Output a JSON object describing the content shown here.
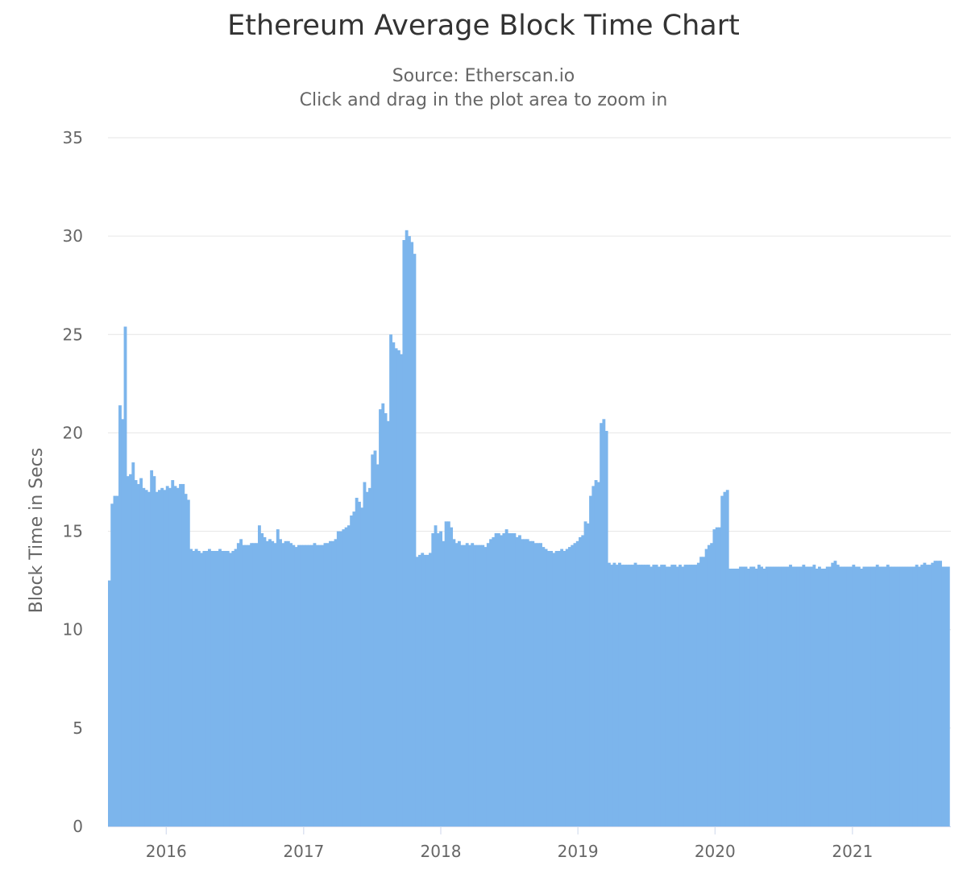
{
  "chart_data": {
    "type": "bar",
    "title": "Ethereum Average Block Time Chart",
    "subtitle": [
      "Source: Etherscan.io",
      "Click and drag in the plot area to zoom in"
    ],
    "xlabel": "",
    "ylabel": "Block Time in Secs",
    "ylim": [
      0,
      35
    ],
    "yticks": [
      0,
      5,
      10,
      15,
      20,
      25,
      30,
      35
    ],
    "xlim": [
      "2015-07-30",
      "2021-09-20"
    ],
    "xticks": [
      "2016",
      "2017",
      "2018",
      "2019",
      "2020",
      "2021"
    ],
    "bar_color": "#7cb5ec",
    "grid": true,
    "x": [
      "2015-07-30",
      "2015-08-06",
      "2015-08-13",
      "2015-08-20",
      "2015-08-27",
      "2015-09-03",
      "2015-09-10",
      "2015-09-17",
      "2015-09-24",
      "2015-10-01",
      "2015-10-08",
      "2015-10-15",
      "2015-10-22",
      "2015-10-29",
      "2015-11-05",
      "2015-11-12",
      "2015-11-19",
      "2015-11-26",
      "2015-12-03",
      "2015-12-10",
      "2015-12-17",
      "2015-12-24",
      "2015-12-31",
      "2016-01-07",
      "2016-01-14",
      "2016-01-21",
      "2016-01-28",
      "2016-02-04",
      "2016-02-11",
      "2016-02-18",
      "2016-02-25",
      "2016-03-03",
      "2016-03-10",
      "2016-03-17",
      "2016-03-24",
      "2016-03-31",
      "2016-04-07",
      "2016-04-14",
      "2016-04-21",
      "2016-04-28",
      "2016-05-05",
      "2016-05-12",
      "2016-05-19",
      "2016-05-26",
      "2016-06-02",
      "2016-06-09",
      "2016-06-16",
      "2016-06-23",
      "2016-06-30",
      "2016-07-07",
      "2016-07-14",
      "2016-07-21",
      "2016-07-28",
      "2016-08-04",
      "2016-08-11",
      "2016-08-18",
      "2016-08-25",
      "2016-09-01",
      "2016-09-08",
      "2016-09-15",
      "2016-09-22",
      "2016-09-29",
      "2016-10-06",
      "2016-10-13",
      "2016-10-20",
      "2016-10-27",
      "2016-11-03",
      "2016-11-10",
      "2016-11-17",
      "2016-11-24",
      "2016-12-01",
      "2016-12-08",
      "2016-12-15",
      "2016-12-22",
      "2016-12-29",
      "2017-01-05",
      "2017-01-12",
      "2017-01-19",
      "2017-01-26",
      "2017-02-02",
      "2017-02-09",
      "2017-02-16",
      "2017-02-23",
      "2017-03-02",
      "2017-03-09",
      "2017-03-16",
      "2017-03-23",
      "2017-03-30",
      "2017-04-06",
      "2017-04-13",
      "2017-04-20",
      "2017-04-27",
      "2017-05-04",
      "2017-05-11",
      "2017-05-18",
      "2017-05-25",
      "2017-06-01",
      "2017-06-08",
      "2017-06-15",
      "2017-06-22",
      "2017-06-29",
      "2017-07-06",
      "2017-07-13",
      "2017-07-20",
      "2017-07-27",
      "2017-08-03",
      "2017-08-10",
      "2017-08-17",
      "2017-08-24",
      "2017-08-31",
      "2017-09-07",
      "2017-09-14",
      "2017-09-21",
      "2017-09-28",
      "2017-10-05",
      "2017-10-12",
      "2017-10-19",
      "2017-10-26",
      "2017-11-02",
      "2017-11-09",
      "2017-11-16",
      "2017-11-23",
      "2017-11-30",
      "2017-12-07",
      "2017-12-14",
      "2017-12-21",
      "2017-12-28",
      "2018-01-04",
      "2018-01-11",
      "2018-01-18",
      "2018-01-25",
      "2018-02-01",
      "2018-02-08",
      "2018-02-15",
      "2018-02-22",
      "2018-03-01",
      "2018-03-08",
      "2018-03-15",
      "2018-03-22",
      "2018-03-29",
      "2018-04-05",
      "2018-04-12",
      "2018-04-19",
      "2018-04-26",
      "2018-05-03",
      "2018-05-10",
      "2018-05-17",
      "2018-05-24",
      "2018-05-31",
      "2018-06-07",
      "2018-06-14",
      "2018-06-21",
      "2018-06-28",
      "2018-07-05",
      "2018-07-12",
      "2018-07-19",
      "2018-07-26",
      "2018-08-02",
      "2018-08-09",
      "2018-08-16",
      "2018-08-23",
      "2018-08-30",
      "2018-09-06",
      "2018-09-13",
      "2018-09-20",
      "2018-09-27",
      "2018-10-04",
      "2018-10-11",
      "2018-10-18",
      "2018-10-25",
      "2018-11-01",
      "2018-11-08",
      "2018-11-15",
      "2018-11-22",
      "2018-11-29",
      "2018-12-06",
      "2018-12-13",
      "2018-12-20",
      "2018-12-27",
      "2019-01-03",
      "2019-01-10",
      "2019-01-17",
      "2019-01-24",
      "2019-01-31",
      "2019-02-07",
      "2019-02-14",
      "2019-02-21",
      "2019-02-28",
      "2019-03-07",
      "2019-03-14",
      "2019-03-21",
      "2019-03-28",
      "2019-04-04",
      "2019-04-11",
      "2019-04-18",
      "2019-04-25",
      "2019-05-02",
      "2019-05-09",
      "2019-05-16",
      "2019-05-23",
      "2019-05-30",
      "2019-06-06",
      "2019-06-13",
      "2019-06-20",
      "2019-06-27",
      "2019-07-04",
      "2019-07-11",
      "2019-07-18",
      "2019-07-25",
      "2019-08-01",
      "2019-08-08",
      "2019-08-15",
      "2019-08-22",
      "2019-08-29",
      "2019-09-05",
      "2019-09-12",
      "2019-09-19",
      "2019-09-26",
      "2019-10-03",
      "2019-10-10",
      "2019-10-17",
      "2019-10-24",
      "2019-10-31",
      "2019-11-07",
      "2019-11-14",
      "2019-11-21",
      "2019-11-28",
      "2019-12-05",
      "2019-12-12",
      "2019-12-19",
      "2019-12-26",
      "2020-01-02",
      "2020-01-09",
      "2020-01-16",
      "2020-01-23",
      "2020-01-30",
      "2020-02-06",
      "2020-02-13",
      "2020-02-20",
      "2020-02-27",
      "2020-03-05",
      "2020-03-12",
      "2020-03-19",
      "2020-03-26",
      "2020-04-02",
      "2020-04-09",
      "2020-04-16",
      "2020-04-23",
      "2020-04-30",
      "2020-05-07",
      "2020-05-14",
      "2020-05-21",
      "2020-05-28",
      "2020-06-04",
      "2020-06-11",
      "2020-06-18",
      "2020-06-25",
      "2020-07-02",
      "2020-07-09",
      "2020-07-16",
      "2020-07-23",
      "2020-07-30",
      "2020-08-06",
      "2020-08-13",
      "2020-08-20",
      "2020-08-27",
      "2020-09-03",
      "2020-09-10",
      "2020-09-17",
      "2020-09-24",
      "2020-10-01",
      "2020-10-08",
      "2020-10-15",
      "2020-10-22",
      "2020-10-29",
      "2020-11-05",
      "2020-11-12",
      "2020-11-19",
      "2020-11-26",
      "2020-12-03",
      "2020-12-10",
      "2020-12-17",
      "2020-12-24",
      "2020-12-31",
      "2021-01-07",
      "2021-01-14",
      "2021-01-21",
      "2021-01-28",
      "2021-02-04",
      "2021-02-11",
      "2021-02-18",
      "2021-02-25",
      "2021-03-04",
      "2021-03-11",
      "2021-03-18",
      "2021-03-25",
      "2021-04-01",
      "2021-04-08",
      "2021-04-15",
      "2021-04-22",
      "2021-04-29",
      "2021-05-06",
      "2021-05-13",
      "2021-05-20",
      "2021-05-27",
      "2021-06-03",
      "2021-06-10",
      "2021-06-17",
      "2021-06-24",
      "2021-07-01",
      "2021-07-08",
      "2021-07-15",
      "2021-07-22",
      "2021-07-29",
      "2021-08-05",
      "2021-08-12",
      "2021-08-19",
      "2021-08-26",
      "2021-09-02",
      "2021-09-09"
    ],
    "values": [
      12.5,
      16.4,
      16.8,
      16.8,
      21.4,
      20.7,
      25.4,
      17.8,
      17.9,
      18.5,
      17.6,
      17.4,
      17.7,
      17.2,
      17.1,
      17.0,
      18.1,
      17.8,
      17.0,
      17.1,
      17.2,
      17.1,
      17.3,
      17.2,
      17.6,
      17.3,
      17.2,
      17.4,
      17.4,
      16.9,
      16.6,
      14.1,
      14.0,
      14.1,
      14.0,
      13.9,
      14.0,
      14.0,
      14.1,
      14.0,
      14.0,
      14.0,
      14.1,
      14.0,
      14.0,
      14.0,
      13.9,
      14.0,
      14.1,
      14.4,
      14.6,
      14.3,
      14.3,
      14.3,
      14.4,
      14.4,
      14.4,
      15.3,
      14.9,
      14.7,
      14.5,
      14.6,
      14.5,
      14.4,
      15.1,
      14.6,
      14.4,
      14.5,
      14.5,
      14.4,
      14.3,
      14.2,
      14.3,
      14.3,
      14.3,
      14.3,
      14.3,
      14.3,
      14.4,
      14.3,
      14.3,
      14.3,
      14.4,
      14.4,
      14.5,
      14.5,
      14.6,
      15.0,
      15.0,
      15.1,
      15.2,
      15.3,
      15.8,
      16.0,
      16.7,
      16.5,
      16.2,
      17.5,
      17.0,
      17.2,
      18.9,
      19.1,
      18.4,
      21.2,
      21.5,
      21.0,
      20.6,
      25.0,
      24.6,
      24.3,
      24.2,
      24.0,
      29.8,
      30.3,
      30.0,
      29.7,
      29.1,
      13.7,
      13.8,
      13.9,
      13.8,
      13.8,
      13.9,
      14.9,
      15.3,
      14.9,
      15.0,
      14.5,
      15.5,
      15.5,
      15.2,
      14.6,
      14.4,
      14.5,
      14.3,
      14.3,
      14.4,
      14.3,
      14.4,
      14.3,
      14.3,
      14.3,
      14.3,
      14.2,
      14.4,
      14.6,
      14.7,
      14.9,
      14.9,
      14.8,
      14.9,
      15.1,
      14.9,
      14.9,
      14.9,
      14.7,
      14.8,
      14.6,
      14.6,
      14.6,
      14.5,
      14.5,
      14.4,
      14.4,
      14.4,
      14.2,
      14.1,
      14.0,
      14.0,
      13.9,
      14.0,
      14.0,
      14.1,
      14.0,
      14.1,
      14.2,
      14.3,
      14.4,
      14.5,
      14.7,
      14.8,
      15.5,
      15.4,
      16.8,
      17.3,
      17.6,
      17.5,
      20.5,
      20.7,
      20.1,
      13.4,
      13.3,
      13.4,
      13.3,
      13.4,
      13.3,
      13.3,
      13.3,
      13.3,
      13.3,
      13.4,
      13.3,
      13.3,
      13.3,
      13.3,
      13.3,
      13.2,
      13.3,
      13.3,
      13.2,
      13.3,
      13.3,
      13.2,
      13.2,
      13.3,
      13.3,
      13.2,
      13.3,
      13.2,
      13.3,
      13.3,
      13.3,
      13.3,
      13.3,
      13.4,
      13.7,
      13.7,
      14.1,
      14.3,
      14.4,
      15.1,
      15.2,
      15.2,
      16.8,
      17.0,
      17.1,
      13.1,
      13.1,
      13.1,
      13.1,
      13.2,
      13.2,
      13.2,
      13.1,
      13.2,
      13.2,
      13.1,
      13.3,
      13.2,
      13.1,
      13.2,
      13.2,
      13.2,
      13.2,
      13.2,
      13.2,
      13.2,
      13.2,
      13.2,
      13.3,
      13.2,
      13.2,
      13.2,
      13.2,
      13.3,
      13.2,
      13.2,
      13.2,
      13.3,
      13.1,
      13.2,
      13.1,
      13.1,
      13.2,
      13.2,
      13.4,
      13.5,
      13.3,
      13.2,
      13.2,
      13.2,
      13.2,
      13.2,
      13.3,
      13.2,
      13.2,
      13.1,
      13.2,
      13.2,
      13.2,
      13.2,
      13.2,
      13.3,
      13.2,
      13.2,
      13.2,
      13.3,
      13.2,
      13.2,
      13.2,
      13.2,
      13.2,
      13.2,
      13.2,
      13.2,
      13.2,
      13.2,
      13.3,
      13.2,
      13.3,
      13.4,
      13.3,
      13.3,
      13.4,
      13.5,
      13.5,
      13.5,
      13.2,
      13.2,
      13.2
    ]
  }
}
